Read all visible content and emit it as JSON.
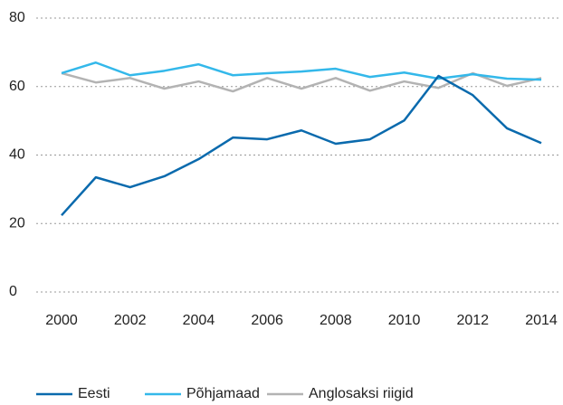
{
  "chart_data": {
    "type": "line",
    "x": [
      2000,
      2001,
      2002,
      2003,
      2004,
      2005,
      2006,
      2007,
      2008,
      2009,
      2010,
      2011,
      2012,
      2013,
      2014
    ],
    "series": [
      {
        "name": "Eesti",
        "color": "#0a6aad",
        "values": [
          22.4,
          33.5,
          30.6,
          33.8,
          38.8,
          45.1,
          44.6,
          47.2,
          43.3,
          44.6,
          50.1,
          63.1,
          57.5,
          47.8,
          43.5
        ]
      },
      {
        "name": "Põhjamaad",
        "color": "#33b8ea",
        "values": [
          63.9,
          67,
          63.3,
          64.6,
          66.5,
          63.3,
          63.9,
          64.4,
          65.2,
          62.8,
          64.1,
          62.3,
          63.6,
          62.3,
          62
        ]
      },
      {
        "name": "Anglosaksi riigid",
        "color": "#b3b3b3",
        "values": [
          63.9,
          61.2,
          62.5,
          59.4,
          61.5,
          58.6,
          62.5,
          59.4,
          62.5,
          58.8,
          61.5,
          59.6,
          63.9,
          60.2,
          62.5
        ]
      }
    ],
    "xlim": [
      2000,
      2014
    ],
    "xticks": [
      2000,
      2002,
      2004,
      2006,
      2008,
      2010,
      2012,
      2014
    ],
    "ylim": [
      0,
      80
    ],
    "yticks": [
      0,
      20,
      40,
      60,
      80
    ],
    "grid": true,
    "legend": "bottom"
  }
}
